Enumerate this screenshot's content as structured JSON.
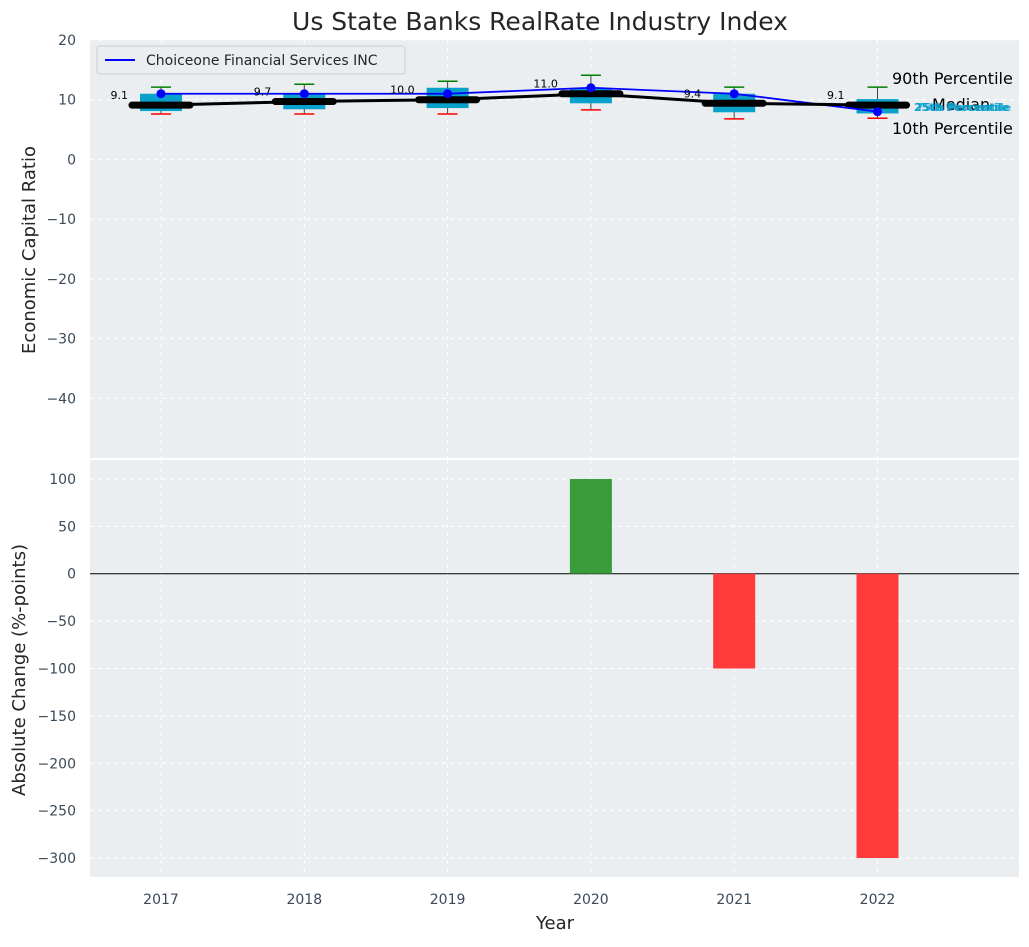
{
  "chart_data": [
    {
      "type": "box",
      "title": "Us State Banks RealRate Industry Index",
      "ylabel": "Economic Capital Ratio",
      "xlabel": "",
      "ylim": [
        -50,
        20
      ],
      "yticks": [
        20,
        10,
        0,
        -10,
        -20,
        -30,
        -40
      ],
      "grid": true,
      "categories": [
        "2017",
        "2018",
        "2019",
        "2020",
        "2021",
        "2022"
      ],
      "boxes": [
        {
          "p10": 7.6,
          "p25": 8.1,
          "median": 9.1,
          "p75": 11.0,
          "p90": 12.1
        },
        {
          "p10": 7.6,
          "p25": 8.4,
          "median": 9.7,
          "p75": 11.1,
          "p90": 12.6
        },
        {
          "p10": 7.6,
          "p25": 8.6,
          "median": 10.0,
          "p75": 12.0,
          "p90": 13.1
        },
        {
          "p10": 8.3,
          "p25": 9.4,
          "median": 11.0,
          "p75": 11.9,
          "p90": 14.1
        },
        {
          "p10": 6.8,
          "p25": 7.9,
          "median": 9.4,
          "p75": 11.0,
          "p90": 12.1
        },
        {
          "p10": 6.9,
          "p25": 7.7,
          "median": 9.1,
          "p75": 10.1,
          "p90": 12.1
        }
      ],
      "median_labels": [
        "9.1",
        "9.7",
        "10.0",
        "11.0",
        "9.4",
        "9.1"
      ],
      "series": [
        {
          "name": "Choiceone Financial Services INC",
          "color": "#0000ff",
          "values": [
            11,
            11,
            11,
            12,
            11,
            8
          ]
        },
        {
          "name": "Median",
          "color": "#000000",
          "values": [
            9.1,
            9.7,
            10.0,
            11.0,
            9.4,
            9.1
          ]
        }
      ],
      "legend": {
        "position": "top-left",
        "entries": [
          "Choiceone Financial Services INC"
        ]
      },
      "annotations": [
        "90th Percentile",
        "Median",
        "10th Percentile",
        "25th Percentile",
        "75th Percentile"
      ],
      "colors": {
        "box": "#0aa0cc",
        "whisker_top": "#008000",
        "whisker_bottom": "#ff0000",
        "panel": "#eaeef0"
      }
    },
    {
      "type": "bar",
      "ylabel": "Absolute Change (%-points)",
      "xlabel": "Year",
      "ylim": [
        -320,
        120
      ],
      "yticks": [
        100,
        50,
        0,
        -50,
        -100,
        -150,
        -200,
        -250,
        -300
      ],
      "categories": [
        "2017",
        "2018",
        "2019",
        "2020",
        "2021",
        "2022"
      ],
      "values": [
        0,
        0,
        0,
        100,
        -100,
        -300
      ],
      "colors": {
        "positive": "#3a9b3a",
        "negative": "#ff3b3b"
      }
    }
  ]
}
